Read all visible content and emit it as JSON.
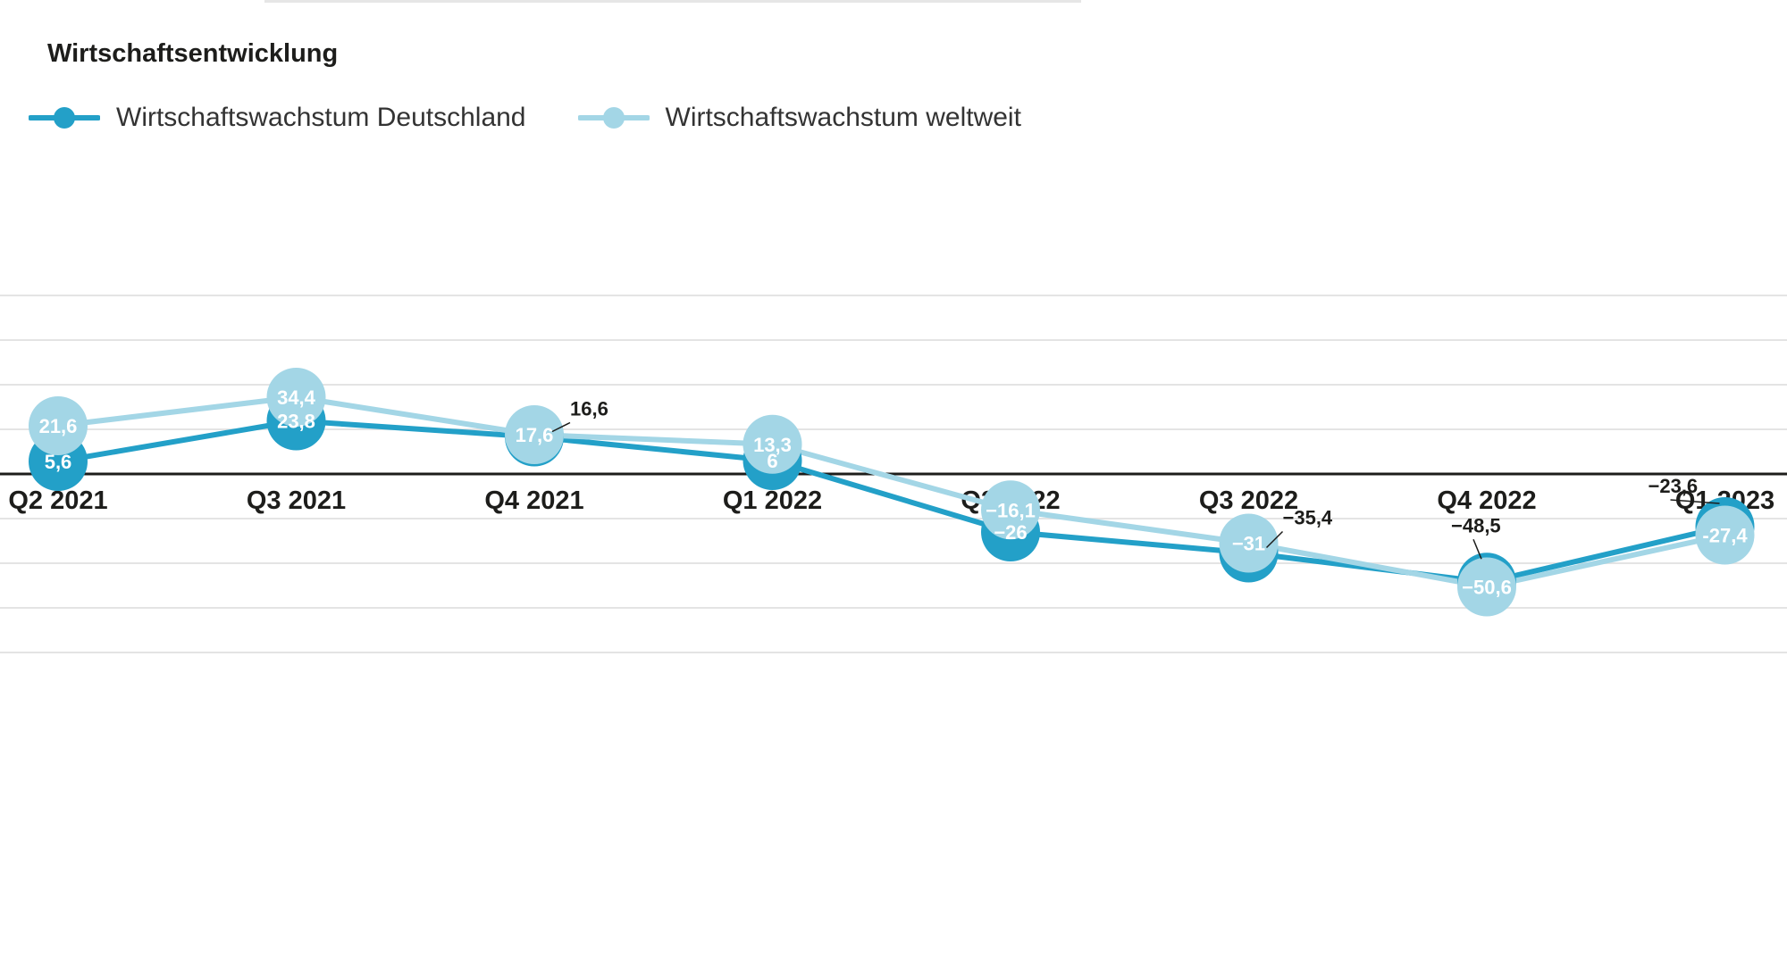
{
  "chart_data": {
    "type": "line",
    "title": "Wirtschaftsentwicklung",
    "categories": [
      "Q2 2021",
      "Q3 2021",
      "Q4 2021",
      "Q1 2022",
      "Q2 2022",
      "Q3 2022",
      "Q4 2022",
      "Q1 2023"
    ],
    "series": [
      {
        "name": "Wirtschaftswachstum Deutschland",
        "color": "#23a0c8",
        "values": [
          5.6,
          23.8,
          16.6,
          6,
          -26,
          -35.4,
          -48.5,
          -23.6
        ],
        "labels": [
          "5,6",
          "23,8",
          "16,6",
          "6",
          "−26",
          "−35,4",
          "−48,5",
          "−23,6"
        ]
      },
      {
        "name": "Wirtschaftswachstum weltweit",
        "color": "#a3d6e6",
        "values": [
          21.6,
          34.4,
          17.6,
          13.3,
          -16.1,
          -31,
          -50.6,
          -27.4
        ],
        "labels": [
          "21,6",
          "34,4",
          "17,6",
          "13,3",
          "−16,1",
          "−31",
          "−50,6",
          "-27,4"
        ]
      }
    ],
    "ylim": [
      -100,
      60
    ],
    "grid": true,
    "legend_position": "top-left",
    "xlabel": "",
    "ylabel": ""
  }
}
